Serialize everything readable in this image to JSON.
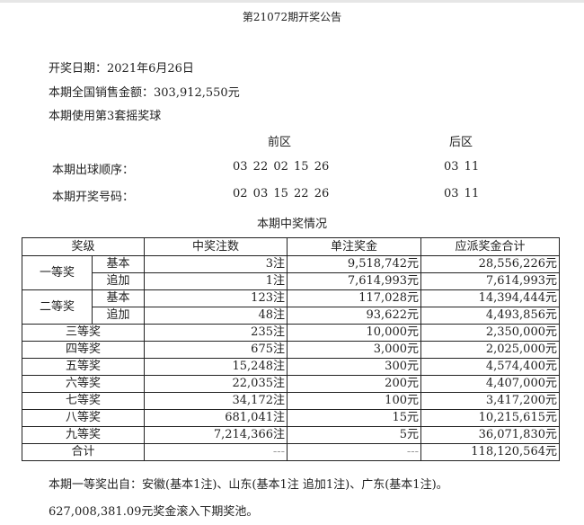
{
  "title": "第21072期开奖公告",
  "draw_date": "开奖日期：2021年6月26日",
  "sales": "本期全国销售金额：303,912,550元",
  "ball_set": "本期使用第3套摇奖球",
  "zones": {
    "front": "前区",
    "back": "后区"
  },
  "draw_order": {
    "label": "本期出球顺序：",
    "front": "03 22 02 15 26",
    "back": "03 11"
  },
  "winning_numbers": {
    "label": "本期开奖号码：",
    "front": "02 03 15 22 26",
    "back": "03 11"
  },
  "table_title": "本期中奖情况",
  "table": {
    "headers": [
      "奖级",
      "中奖注数",
      "单注奖金",
      "应派奖金合计"
    ],
    "first": {
      "level": "一等奖",
      "basic": {
        "type": "基本",
        "count": "3注",
        "prize": "9,518,742元",
        "total": "28,556,226元"
      },
      "extra": {
        "type": "追加",
        "count": "1注",
        "prize": "7,614,993元",
        "total": "7,614,993元"
      }
    },
    "second": {
      "level": "二等奖",
      "basic": {
        "type": "基本",
        "count": "123注",
        "prize": "117,028元",
        "total": "14,394,444元"
      },
      "extra": {
        "type": "追加",
        "count": "48注",
        "prize": "93,622元",
        "total": "4,493,856元"
      }
    },
    "rows": [
      {
        "level": "三等奖",
        "count": "235注",
        "prize": "10,000元",
        "total": "2,350,000元"
      },
      {
        "level": "四等奖",
        "count": "675注",
        "prize": "3,000元",
        "total": "2,025,000元"
      },
      {
        "level": "五等奖",
        "count": "15,248注",
        "prize": "300元",
        "total": "4,574,400元"
      },
      {
        "level": "六等奖",
        "count": "22,035注",
        "prize": "200元",
        "total": "4,407,000元"
      },
      {
        "level": "七等奖",
        "count": "34,172注",
        "prize": "100元",
        "total": "3,417,200元"
      },
      {
        "level": "八等奖",
        "count": "681,041注",
        "prize": "15元",
        "total": "10,215,615元"
      },
      {
        "level": "九等奖",
        "count": "7,214,366注",
        "prize": "5元",
        "total": "36,071,830元"
      }
    ],
    "sum": {
      "level": "合计",
      "count": "---",
      "prize": "---",
      "total": "118,120,564元"
    }
  },
  "footer_origin": "本期一等奖出自：安徽(基本1注)、山东(基本1注 追加1注)、广东(基本1注)。",
  "footer_pool": "627,008,381.09元奖金滚入下期奖池。"
}
